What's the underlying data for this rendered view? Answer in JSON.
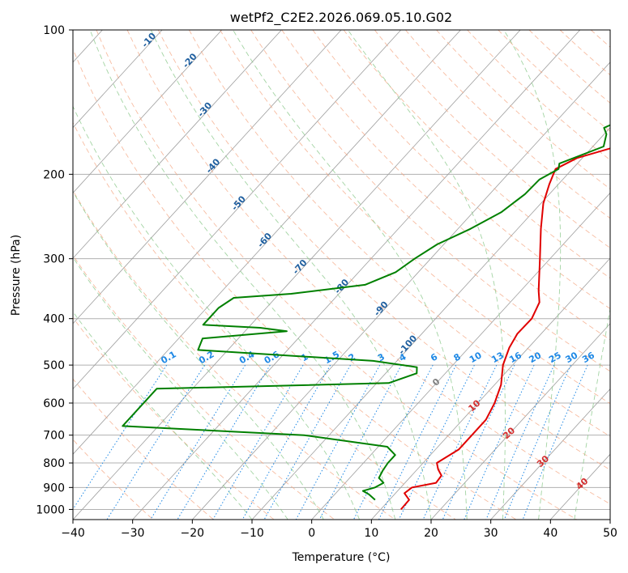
{
  "chart_data": {
    "type": "skew-t",
    "title": "wetPf2_C2E2.2026.069.05.10.G02",
    "xlabel": "Temperature (°C)",
    "ylabel": "Pressure (hPa)",
    "xlim": [
      -40,
      50
    ],
    "ylim": [
      1050,
      100
    ],
    "x_ticks": [
      -40,
      -30,
      -20,
      -10,
      0,
      10,
      20,
      30,
      40,
      50
    ],
    "y_ticks": [
      100,
      200,
      300,
      400,
      500,
      600,
      700,
      800,
      900,
      1000
    ],
    "grid": true,
    "colors": {
      "temperature": "#e00000",
      "dewpoint": "#008000",
      "dry_adiabat": "#f4a582",
      "moist_adiabat": "#8cc98c",
      "mixing_ratio": "#1e88e5",
      "isotherm": "#9e9e9e",
      "isotherm_label": "#d32f2f",
      "moist_label": "#1f5f9f"
    },
    "series": [
      {
        "name": "Temperature",
        "points": [
          {
            "p": 1000,
            "t": 13.4
          },
          {
            "p": 955,
            "t": 13.3
          },
          {
            "p": 925,
            "t": 11.5
          },
          {
            "p": 900,
            "t": 11.9
          },
          {
            "p": 880,
            "t": 15.2
          },
          {
            "p": 850,
            "t": 15.0
          },
          {
            "p": 825,
            "t": 13.5
          },
          {
            "p": 800,
            "t": 12.3
          },
          {
            "p": 750,
            "t": 13.9
          },
          {
            "p": 700,
            "t": 13.9
          },
          {
            "p": 650,
            "t": 13.9
          },
          {
            "p": 600,
            "t": 12.8
          },
          {
            "p": 550,
            "t": 11.1
          },
          {
            "p": 500,
            "t": 8.4
          },
          {
            "p": 460,
            "t": 6.8
          },
          {
            "p": 430,
            "t": 6.0
          },
          {
            "p": 400,
            "t": 6.1
          },
          {
            "p": 370,
            "t": 4.9
          },
          {
            "p": 350,
            "t": 3.0
          },
          {
            "p": 300,
            "t": -1.7
          },
          {
            "p": 260,
            "t": -6.1
          },
          {
            "p": 230,
            "t": -9.6
          },
          {
            "p": 210,
            "t": -11.5
          },
          {
            "p": 195,
            "t": -12.8
          },
          {
            "p": 185,
            "t": -10.9
          },
          {
            "p": 175,
            "t": -6.0
          },
          {
            "p": 165,
            "t": 0.7
          },
          {
            "p": 150,
            "t": 4.2
          },
          {
            "p": 130,
            "t": 4.6
          },
          {
            "p": 110,
            "t": 4.8
          },
          {
            "p": 100,
            "t": 4.8
          }
        ]
      },
      {
        "name": "Dewpoint",
        "points": [
          {
            "p": 955,
            "t": 7.6
          },
          {
            "p": 930,
            "t": 5.7
          },
          {
            "p": 915,
            "t": 4.2
          },
          {
            "p": 900,
            "t": 5.7
          },
          {
            "p": 880,
            "t": 6.4
          },
          {
            "p": 860,
            "t": 4.9
          },
          {
            "p": 830,
            "t": 4.4
          },
          {
            "p": 800,
            "t": 4.1
          },
          {
            "p": 770,
            "t": 4.1
          },
          {
            "p": 740,
            "t": 1.5
          },
          {
            "p": 700,
            "t": -14.2
          },
          {
            "p": 670,
            "t": -46.0
          },
          {
            "p": 560,
            "t": -46.0
          },
          {
            "p": 545,
            "t": -8.0
          },
          {
            "p": 520,
            "t": -4.8
          },
          {
            "p": 505,
            "t": -5.7
          },
          {
            "p": 490,
            "t": -14.0
          },
          {
            "p": 465,
            "t": -45.0
          },
          {
            "p": 440,
            "t": -46.0
          },
          {
            "p": 425,
            "t": -33.0
          },
          {
            "p": 418,
            "t": -38.0
          },
          {
            "p": 412,
            "t": -48.0
          },
          {
            "p": 400,
            "t": -48.0
          },
          {
            "p": 380,
            "t": -48.0
          },
          {
            "p": 362,
            "t": -47.0
          },
          {
            "p": 355,
            "t": -38.0
          },
          {
            "p": 340,
            "t": -27.0
          },
          {
            "p": 320,
            "t": -23.8
          },
          {
            "p": 300,
            "t": -22.7
          },
          {
            "p": 280,
            "t": -21.1
          },
          {
            "p": 260,
            "t": -17.9
          },
          {
            "p": 240,
            "t": -15.3
          },
          {
            "p": 220,
            "t": -14.1
          },
          {
            "p": 205,
            "t": -13.9
          },
          {
            "p": 195,
            "t": -12.3
          },
          {
            "p": 190,
            "t": -13.0
          },
          {
            "p": 175,
            "t": -8.2
          },
          {
            "p": 165,
            "t": -9.6
          },
          {
            "p": 160,
            "t": -11.0
          },
          {
            "p": 150,
            "t": -7.9
          },
          {
            "p": 130,
            "t": -1.9
          },
          {
            "p": 110,
            "t": 4.1
          },
          {
            "p": 100,
            "t": 6.5
          }
        ]
      }
    ],
    "isotherm_labels": [
      {
        "t": 0,
        "text": "0"
      },
      {
        "t": 10,
        "text": "10"
      },
      {
        "t": 20,
        "text": "20"
      },
      {
        "t": 30,
        "text": "30"
      },
      {
        "t": 40,
        "text": "40"
      }
    ],
    "moist_adiabat_labels": [
      "-100",
      "-90",
      "-80",
      "-70",
      "-60",
      "-50",
      "-40",
      "-30",
      "-20",
      "-10"
    ],
    "mixing_ratio_labels": [
      "0.1",
      "0.2",
      "0.4",
      "0.6",
      "1",
      "1.5",
      "2",
      "3",
      "4",
      "6",
      "8",
      "10",
      "13",
      "16",
      "20",
      "25",
      "30",
      "36"
    ]
  }
}
